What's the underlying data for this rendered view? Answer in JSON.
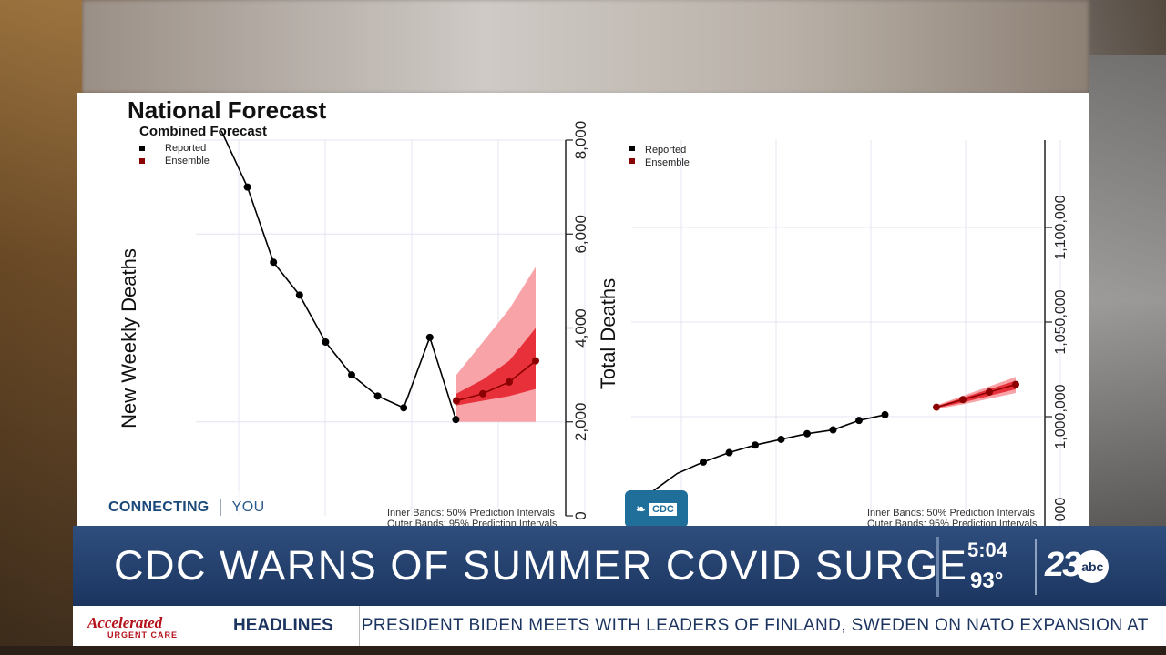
{
  "broadcast": {
    "connecting_label": "CONNECTING",
    "connecting_you": "YOU",
    "headline": "CDC WARNS OF SUMMER COVID SURGE",
    "time": "5:04",
    "temperature": "93°",
    "station_logo": "23",
    "network_logo": "abc",
    "ticker_label": "HEADLINES",
    "ticker_text": "PRESIDENT BIDEN MEETS WITH LEADERS OF FINLAND, SWEDEN ON NATO EXPANSION AT",
    "sponsor_name": "Accelerated",
    "sponsor_sub": "URGENT CARE",
    "cdc_badge": "CDC"
  },
  "chart_data": [
    {
      "type": "line",
      "title": "National Forecast",
      "subtitle": "Combined Forecast",
      "xlabel": "",
      "ylabel": "New Weekly Deaths",
      "legend": [
        "Reported",
        "Ensemble"
      ],
      "legend_position": "top-left",
      "footnote_1": "Inner Bands: 50% Prediction Intervals",
      "footnote_2": "Outer Bands: 95% Prediction Intervals",
      "yticks": [
        "0",
        "2,000",
        "4,000",
        "6,000",
        "8,000"
      ],
      "ylim": [
        0,
        8000
      ],
      "series": [
        {
          "name": "Reported",
          "values": [
            8200,
            7000,
            5400,
            4700,
            3700,
            3000,
            2550,
            2300,
            3800,
            2050
          ]
        },
        {
          "name": "Ensemble",
          "x_index": [
            9,
            10,
            11,
            12
          ],
          "values": [
            2450,
            2600,
            2850,
            3300
          ],
          "inner_low": [
            2350,
            2450,
            2550,
            2700
          ],
          "inner_high": [
            2600,
            2900,
            3300,
            4000
          ],
          "outer_low": [
            2000,
            2000,
            2000,
            2000
          ],
          "outer_high": [
            3000,
            3700,
            4400,
            5300
          ]
        }
      ]
    },
    {
      "type": "line",
      "ylabel": "Total Deaths",
      "legend": [
        "Reported",
        "Ensemble"
      ],
      "legend_position": "top-left",
      "footnote_1": "Inner Bands: 50% Prediction Intervals",
      "footnote_2": "Outer Bands: 95% Prediction Intervals",
      "yticks": [
        "1,000,000",
        "1,050,000",
        "1,100,000"
      ],
      "series": [
        {
          "name": "Reported",
          "values": [
            960000,
            970000,
            976000,
            981000,
            985000,
            988000,
            991000,
            993000,
            998000,
            1001000
          ]
        },
        {
          "name": "Ensemble",
          "x_index": [
            9,
            10,
            11,
            12
          ],
          "values": [
            1005000,
            1009000,
            1013000,
            1017000
          ],
          "inner_low": [
            1004500,
            1007500,
            1011000,
            1014500
          ],
          "inner_high": [
            1005500,
            1010000,
            1014500,
            1019000
          ],
          "outer_low": [
            1004000,
            1006500,
            1009500,
            1012500
          ],
          "outer_high": [
            1006000,
            1011000,
            1016000,
            1021000
          ]
        }
      ]
    }
  ],
  "colors": {
    "reported": "#000000",
    "ensemble": "#8b0000",
    "inner_band": "#e8303a",
    "outer_band": "#f7a3a8",
    "grid": "#e4e4f2",
    "banner": "#233f6c",
    "ticker_text": "#1c3560"
  }
}
